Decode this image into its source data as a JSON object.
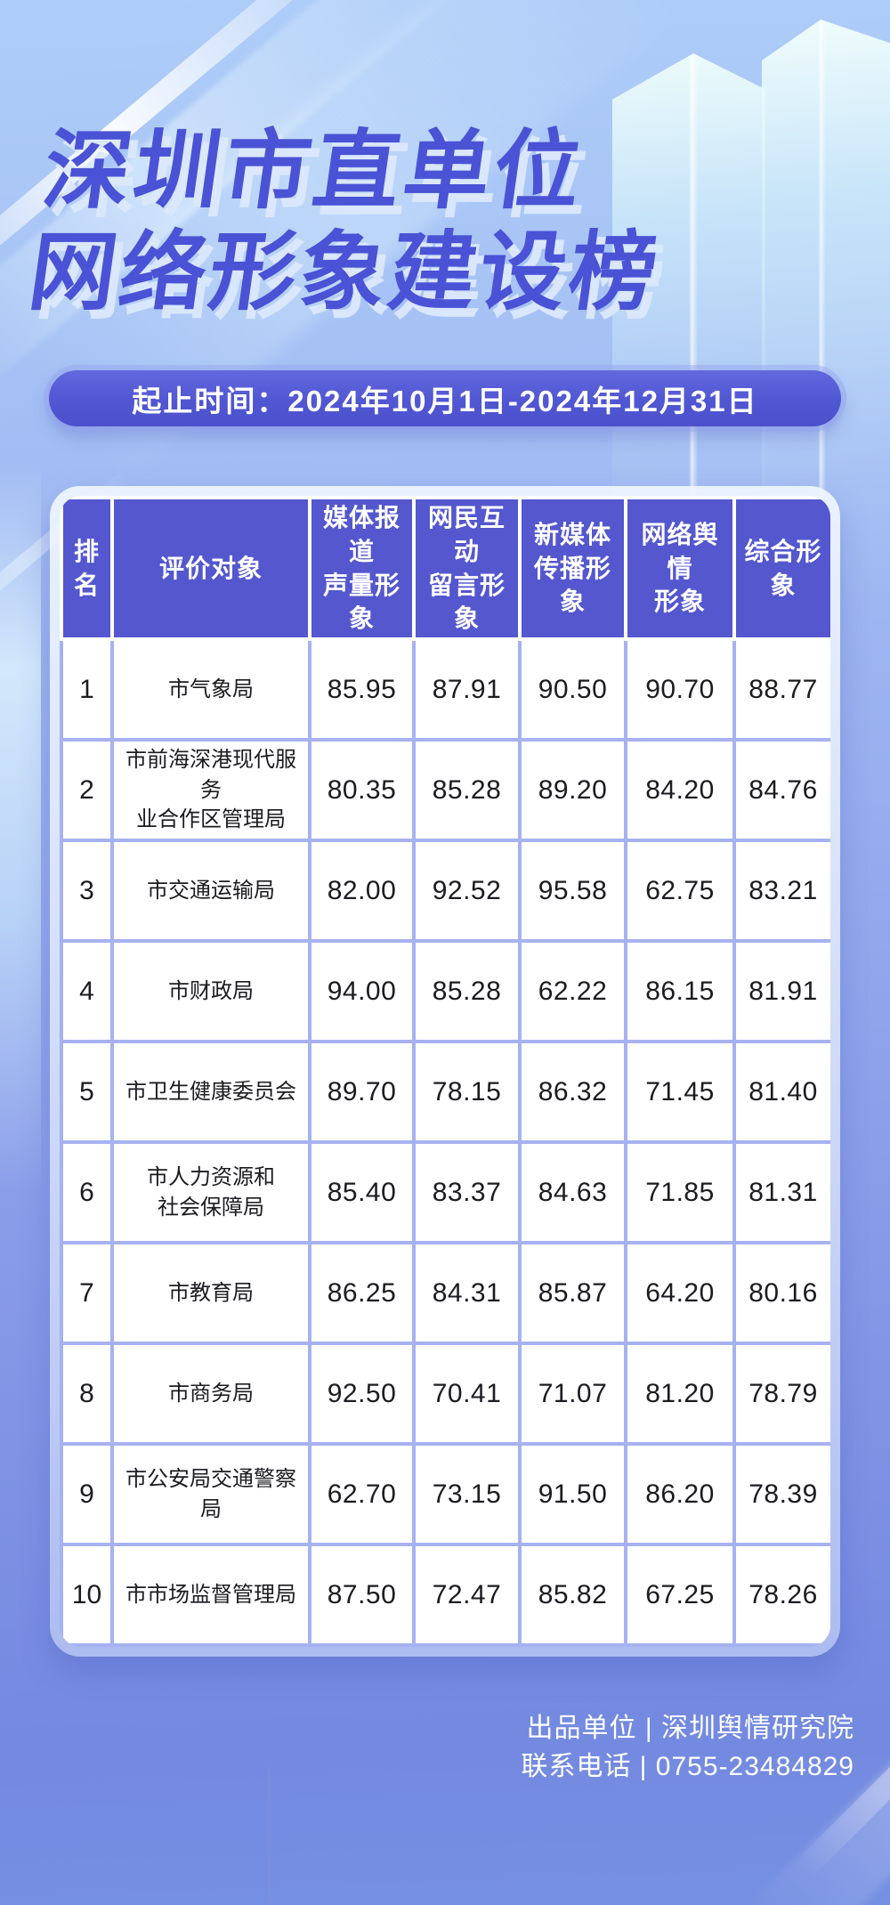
{
  "header": {
    "title_line1": "深圳市直单位",
    "title_line2": "网络形象建设榜",
    "period": "起止时间：2024年10月1日-2024年12月31日"
  },
  "chart_data": {
    "type": "table",
    "title": "深圳市直单位网络形象建设榜",
    "period": "2024年10月1日-2024年12月31日",
    "columns": [
      "排名",
      "评价对象",
      "媒体报道\n声量形象",
      "网民互动\n留言形象",
      "新媒体\n传播形象",
      "网络舆情\n形象",
      "综合形象"
    ],
    "rows": [
      {
        "rank": "1",
        "name": "市气象局",
        "scores": [
          "85.95",
          "87.91",
          "90.50",
          "90.70",
          "88.77"
        ]
      },
      {
        "rank": "2",
        "name": "市前海深港现代服务\n业合作区管理局",
        "scores": [
          "80.35",
          "85.28",
          "89.20",
          "84.20",
          "84.76"
        ]
      },
      {
        "rank": "3",
        "name": "市交通运输局",
        "scores": [
          "82.00",
          "92.52",
          "95.58",
          "62.75",
          "83.21"
        ]
      },
      {
        "rank": "4",
        "name": "市财政局",
        "scores": [
          "94.00",
          "85.28",
          "62.22",
          "86.15",
          "81.91"
        ]
      },
      {
        "rank": "5",
        "name": "市卫生健康委员会",
        "scores": [
          "89.70",
          "78.15",
          "86.32",
          "71.45",
          "81.40"
        ]
      },
      {
        "rank": "6",
        "name": "市人力资源和\n社会保障局",
        "scores": [
          "85.40",
          "83.37",
          "84.63",
          "71.85",
          "81.31"
        ]
      },
      {
        "rank": "7",
        "name": "市教育局",
        "scores": [
          "86.25",
          "84.31",
          "85.87",
          "64.20",
          "80.16"
        ]
      },
      {
        "rank": "8",
        "name": "市商务局",
        "scores": [
          "92.50",
          "70.41",
          "71.07",
          "81.20",
          "78.79"
        ]
      },
      {
        "rank": "9",
        "name": "市公安局交通警察局",
        "scores": [
          "62.70",
          "73.15",
          "91.50",
          "86.20",
          "78.39"
        ]
      },
      {
        "rank": "10",
        "name": "市市场监督管理局",
        "scores": [
          "87.50",
          "72.47",
          "85.82",
          "67.25",
          "78.26"
        ]
      }
    ]
  },
  "footer": {
    "producer": "出品单位 | 深圳舆情研究院",
    "phone": "联系电话 | 0755-23484829"
  },
  "colors": {
    "background_top": "#aecdf8",
    "background_bottom": "#7590e2",
    "title_blue": "#4a52d5",
    "title_shadow": "#d9e7fc",
    "banner_bg": "#5156d2",
    "table_header_bg": "#5457ce",
    "table_border": "#a6b2f0",
    "cell_text": "#1b1b20",
    "text_white": "#ffffff"
  }
}
